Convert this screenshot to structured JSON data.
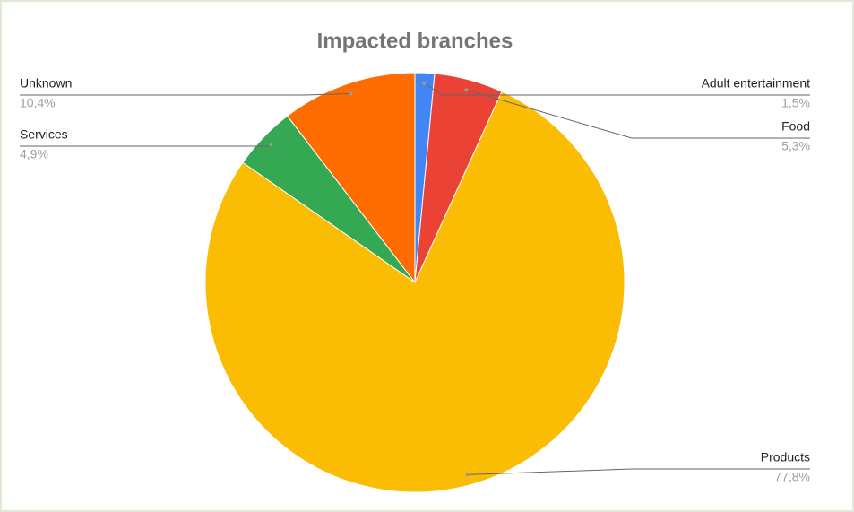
{
  "chart_data": {
    "type": "pie",
    "title": "Impacted branches",
    "categories": [
      "Adult entertainment",
      "Food",
      "Products",
      "Services",
      "Unknown"
    ],
    "values": [
      1.5,
      5.3,
      77.8,
      4.9,
      10.4
    ],
    "value_labels": [
      "1,5%",
      "5,3%",
      "77,8%",
      "4,9%",
      "10,4%"
    ],
    "colors": [
      "#4285f4",
      "#ea4335",
      "#fbbc04",
      "#34a853",
      "#ff6d01"
    ]
  }
}
